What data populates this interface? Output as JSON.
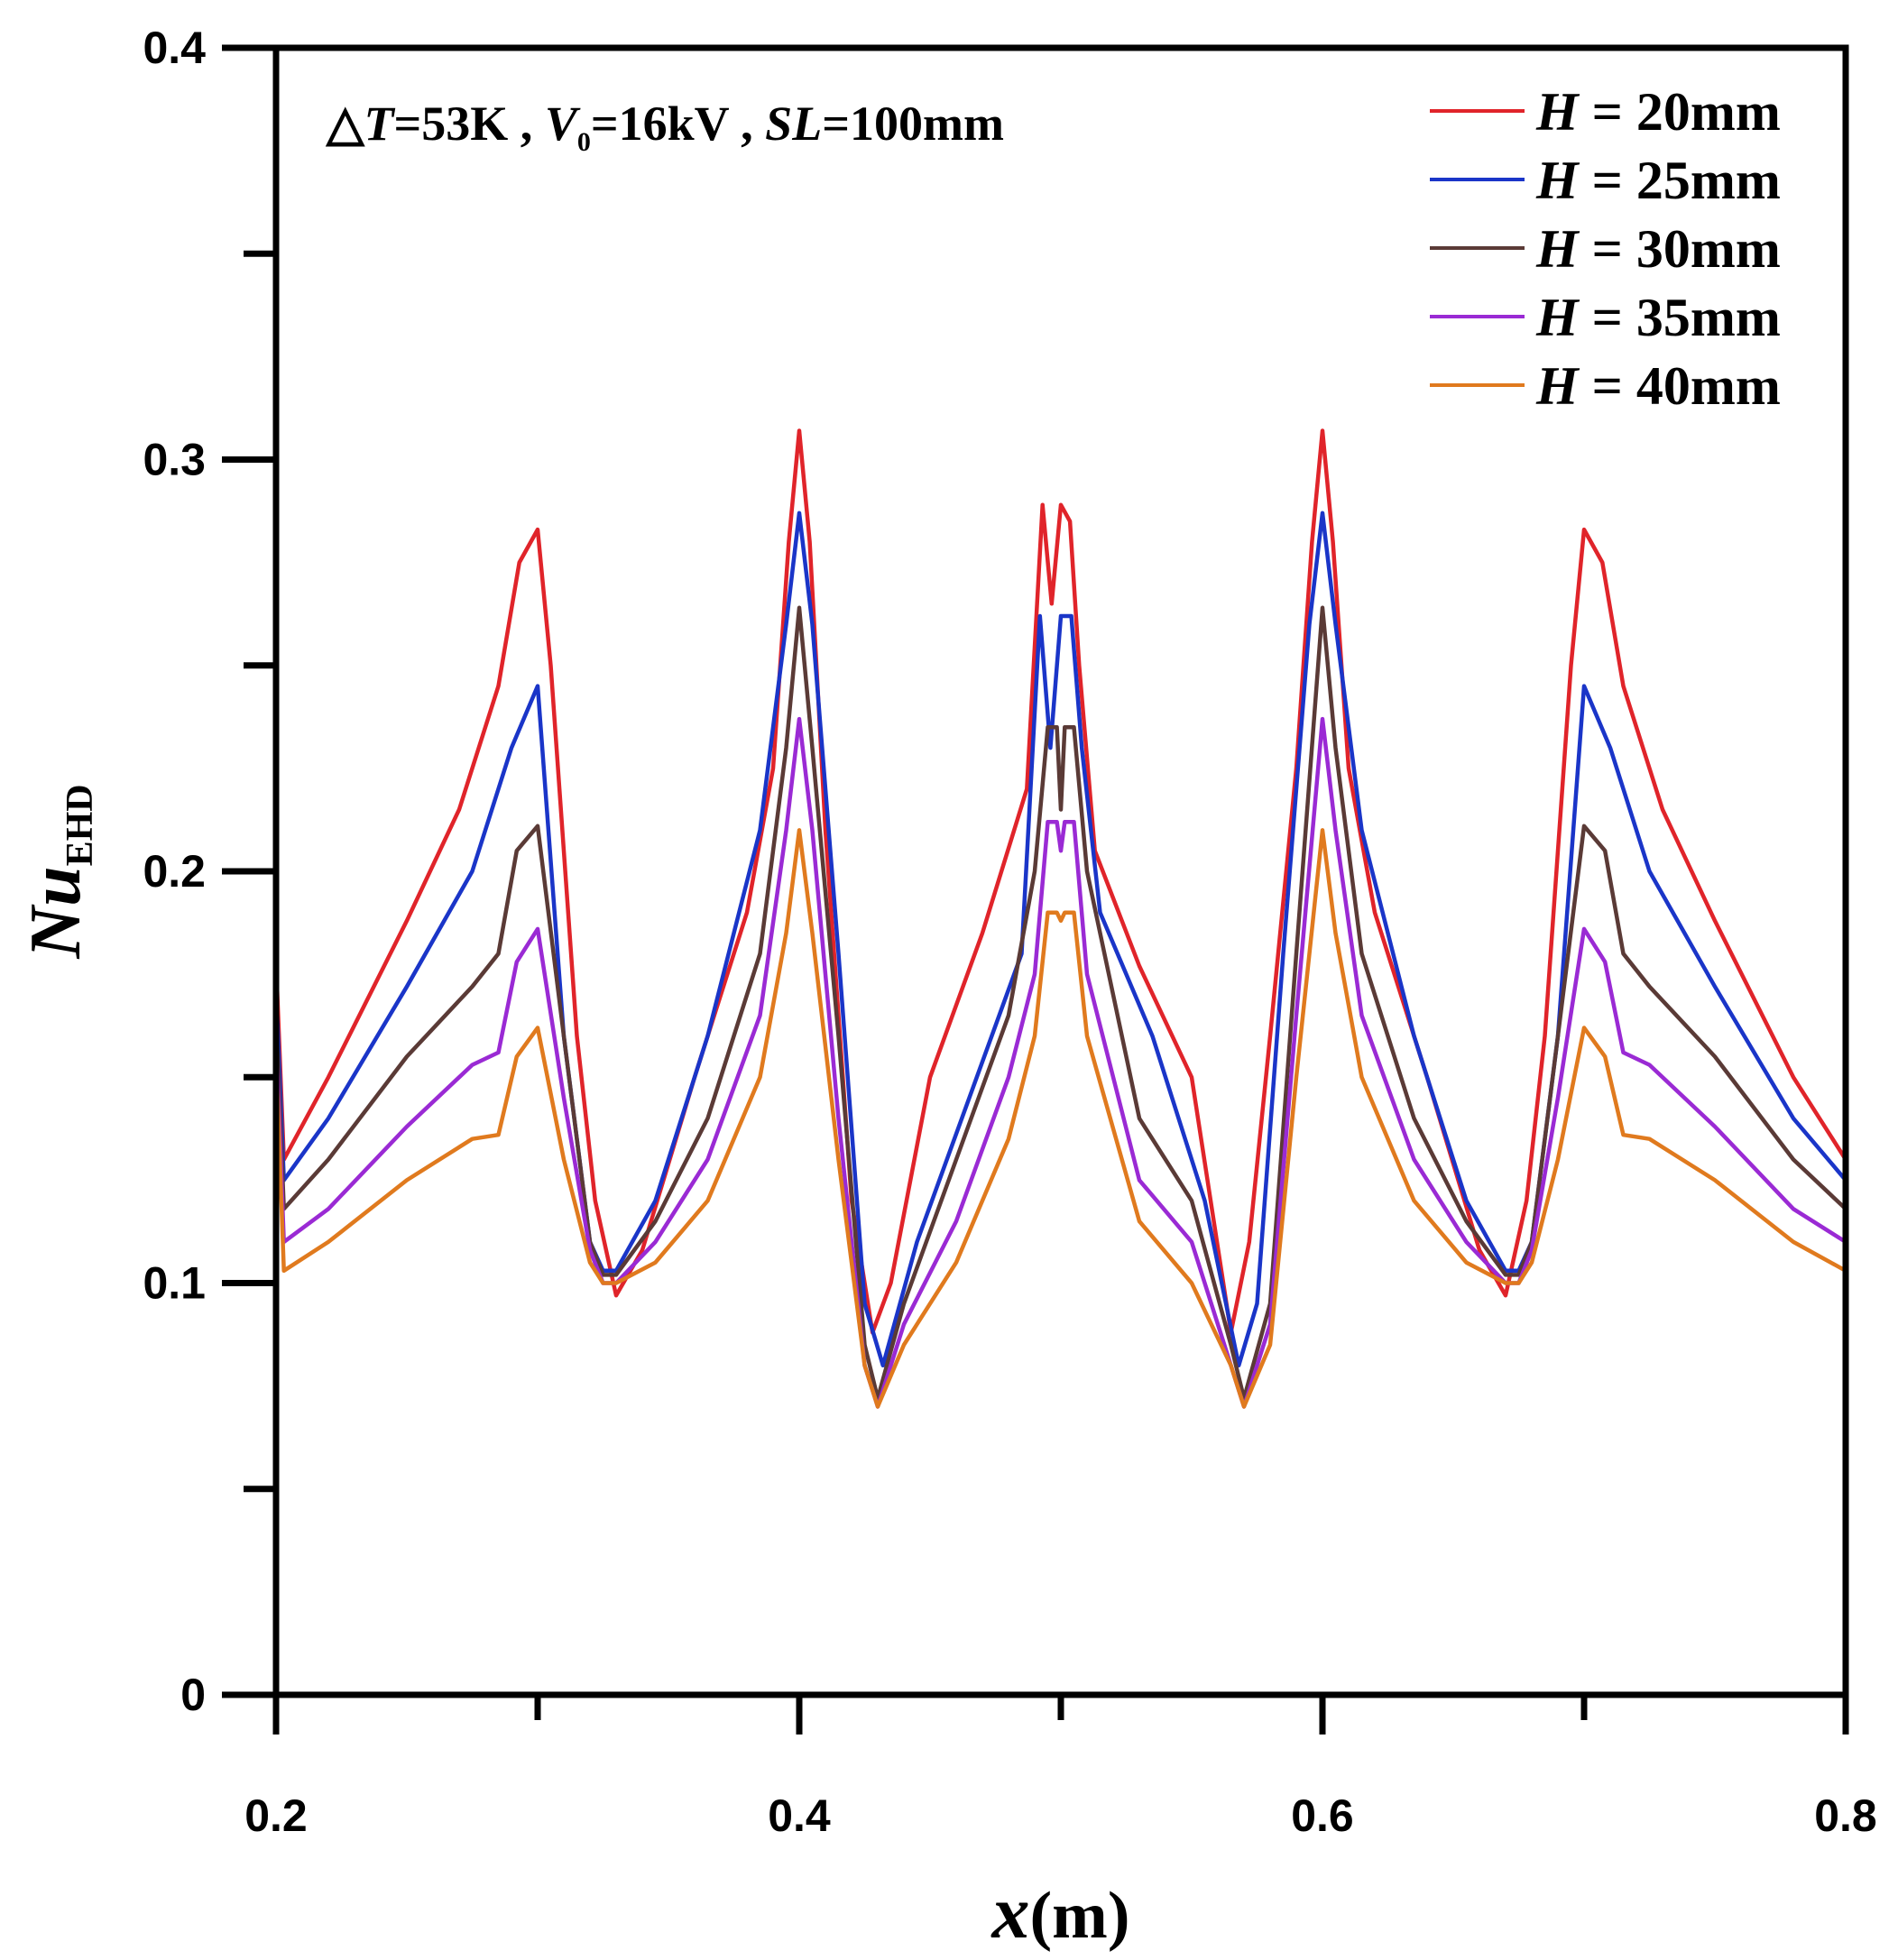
{
  "chart_data": {
    "type": "line",
    "title": "",
    "xlabel_main": "x",
    "xlabel_unit": "(m)",
    "ylabel_main": "Nu",
    "ylabel_sub": "EHD",
    "xlim": [
      0.2,
      0.8
    ],
    "ylim": [
      0,
      0.4
    ],
    "xticks": [
      0.2,
      0.4,
      0.6,
      0.8
    ],
    "xtick_labels": [
      "0.2",
      "0.4",
      "0.6",
      "0.8"
    ],
    "xminor": [
      0.3,
      0.5,
      0.7
    ],
    "yticks": [
      0,
      0.1,
      0.2,
      0.3,
      0.4
    ],
    "ytick_labels": [
      "0",
      "0.1",
      "0.2",
      "0.3",
      "0.4"
    ],
    "yminor": [
      0.05,
      0.15,
      0.25,
      0.35
    ],
    "grid": false,
    "legend_position": "top-right",
    "annotation": {
      "tri": "△",
      "t_var": "T",
      "t_val": "=53K , ",
      "v_var": "V",
      "v_sub": "0",
      "v_val": "=16kV , ",
      "sl_var": "SL",
      "sl_val": "=100mm"
    },
    "series": [
      {
        "name": "H = 20mm",
        "legend_var": "H",
        "legend_rest": " = 20mm",
        "color": "#e0242a",
        "x": [
          0.2,
          0.203,
          0.22,
          0.25,
          0.27,
          0.285,
          0.293,
          0.3,
          0.305,
          0.315,
          0.322,
          0.33,
          0.34,
          0.36,
          0.38,
          0.39,
          0.396,
          0.4,
          0.404,
          0.41,
          0.42,
          0.428,
          0.435,
          0.45,
          0.47,
          0.487,
          0.493,
          0.4965,
          0.5,
          0.5035,
          0.507,
          0.513,
          0.53,
          0.55,
          0.565,
          0.572,
          0.58,
          0.59,
          0.596,
          0.6,
          0.604,
          0.61,
          0.62,
          0.64,
          0.66,
          0.67,
          0.678,
          0.685,
          0.695,
          0.7,
          0.707,
          0.715,
          0.73,
          0.75,
          0.78,
          0.8
        ],
        "y": [
          0.178,
          0.13,
          0.15,
          0.188,
          0.215,
          0.245,
          0.275,
          0.283,
          0.25,
          0.16,
          0.12,
          0.097,
          0.108,
          0.15,
          0.19,
          0.225,
          0.28,
          0.307,
          0.28,
          0.21,
          0.12,
          0.088,
          0.1,
          0.15,
          0.185,
          0.22,
          0.289,
          0.265,
          0.289,
          0.285,
          0.25,
          0.205,
          0.177,
          0.15,
          0.088,
          0.11,
          0.16,
          0.225,
          0.28,
          0.307,
          0.28,
          0.225,
          0.19,
          0.15,
          0.108,
          0.097,
          0.12,
          0.16,
          0.25,
          0.283,
          0.275,
          0.245,
          0.215,
          0.188,
          0.15,
          0.13
        ]
      },
      {
        "name": "H = 25mm",
        "legend_var": "H",
        "legend_rest": " = 25mm",
        "color": "#1a35c8",
        "x": [
          0.2,
          0.203,
          0.22,
          0.25,
          0.275,
          0.29,
          0.3,
          0.31,
          0.32,
          0.325,
          0.33,
          0.345,
          0.365,
          0.385,
          0.395,
          0.4,
          0.405,
          0.415,
          0.425,
          0.432,
          0.445,
          0.465,
          0.485,
          0.492,
          0.496,
          0.5,
          0.504,
          0.508,
          0.515,
          0.535,
          0.555,
          0.568,
          0.575,
          0.585,
          0.595,
          0.6,
          0.605,
          0.615,
          0.635,
          0.655,
          0.67,
          0.675,
          0.68,
          0.69,
          0.7,
          0.71,
          0.725,
          0.75,
          0.78,
          0.8
        ],
        "y": [
          0.172,
          0.125,
          0.14,
          0.172,
          0.2,
          0.23,
          0.245,
          0.16,
          0.11,
          0.103,
          0.103,
          0.12,
          0.16,
          0.21,
          0.26,
          0.287,
          0.26,
          0.18,
          0.095,
          0.08,
          0.11,
          0.145,
          0.18,
          0.262,
          0.23,
          0.262,
          0.262,
          0.23,
          0.19,
          0.16,
          0.12,
          0.08,
          0.095,
          0.18,
          0.26,
          0.287,
          0.26,
          0.21,
          0.16,
          0.12,
          0.103,
          0.103,
          0.11,
          0.16,
          0.245,
          0.23,
          0.2,
          0.172,
          0.14,
          0.125
        ]
      },
      {
        "name": "H = 30mm",
        "legend_var": "H",
        "legend_rest": " = 30mm",
        "color": "#5a3a36",
        "x": [
          0.2,
          0.203,
          0.22,
          0.25,
          0.275,
          0.285,
          0.292,
          0.3,
          0.31,
          0.32,
          0.325,
          0.33,
          0.345,
          0.365,
          0.385,
          0.395,
          0.4,
          0.405,
          0.415,
          0.425,
          0.43,
          0.44,
          0.46,
          0.48,
          0.49,
          0.495,
          0.4985,
          0.5,
          0.5015,
          0.505,
          0.51,
          0.53,
          0.55,
          0.565,
          0.57,
          0.58,
          0.59,
          0.6,
          0.605,
          0.615,
          0.635,
          0.655,
          0.67,
          0.675,
          0.68,
          0.69,
          0.7,
          0.708,
          0.715,
          0.725,
          0.75,
          0.78,
          0.8
        ],
        "y": [
          0.165,
          0.118,
          0.13,
          0.155,
          0.172,
          0.18,
          0.205,
          0.211,
          0.16,
          0.11,
          0.102,
          0.102,
          0.115,
          0.14,
          0.18,
          0.23,
          0.264,
          0.23,
          0.16,
          0.085,
          0.072,
          0.095,
          0.13,
          0.165,
          0.2,
          0.235,
          0.235,
          0.215,
          0.235,
          0.235,
          0.2,
          0.14,
          0.12,
          0.085,
          0.072,
          0.095,
          0.18,
          0.264,
          0.23,
          0.18,
          0.14,
          0.115,
          0.102,
          0.102,
          0.11,
          0.16,
          0.211,
          0.205,
          0.18,
          0.172,
          0.155,
          0.13,
          0.118
        ]
      },
      {
        "name": "H = 35mm",
        "legend_var": "H",
        "legend_rest": " = 35mm",
        "color": "#9a2ad4",
        "x": [
          0.2,
          0.203,
          0.22,
          0.25,
          0.275,
          0.285,
          0.292,
          0.3,
          0.31,
          0.32,
          0.325,
          0.33,
          0.345,
          0.365,
          0.385,
          0.395,
          0.4,
          0.405,
          0.415,
          0.425,
          0.43,
          0.44,
          0.46,
          0.48,
          0.49,
          0.495,
          0.4985,
          0.5,
          0.5015,
          0.505,
          0.51,
          0.53,
          0.55,
          0.565,
          0.57,
          0.58,
          0.59,
          0.6,
          0.605,
          0.615,
          0.635,
          0.655,
          0.67,
          0.675,
          0.68,
          0.69,
          0.7,
          0.708,
          0.715,
          0.725,
          0.75,
          0.78,
          0.8
        ],
        "y": [
          0.16,
          0.11,
          0.118,
          0.138,
          0.153,
          0.156,
          0.178,
          0.186,
          0.145,
          0.108,
          0.1,
          0.1,
          0.11,
          0.13,
          0.165,
          0.21,
          0.237,
          0.21,
          0.14,
          0.08,
          0.07,
          0.09,
          0.115,
          0.15,
          0.175,
          0.212,
          0.212,
          0.205,
          0.212,
          0.212,
          0.175,
          0.125,
          0.11,
          0.08,
          0.07,
          0.09,
          0.165,
          0.237,
          0.21,
          0.165,
          0.13,
          0.11,
          0.1,
          0.1,
          0.108,
          0.145,
          0.186,
          0.178,
          0.156,
          0.153,
          0.138,
          0.118,
          0.11
        ]
      },
      {
        "name": "H = 40mm",
        "legend_var": "H",
        "legend_rest": " = 40mm",
        "color": "#e07a1e",
        "x": [
          0.2,
          0.203,
          0.22,
          0.25,
          0.275,
          0.285,
          0.292,
          0.3,
          0.31,
          0.32,
          0.325,
          0.33,
          0.345,
          0.365,
          0.385,
          0.395,
          0.4,
          0.405,
          0.415,
          0.425,
          0.43,
          0.44,
          0.46,
          0.48,
          0.49,
          0.495,
          0.4985,
          0.5,
          0.5015,
          0.505,
          0.51,
          0.53,
          0.55,
          0.565,
          0.57,
          0.58,
          0.59,
          0.6,
          0.605,
          0.615,
          0.635,
          0.655,
          0.67,
          0.675,
          0.68,
          0.69,
          0.7,
          0.708,
          0.715,
          0.725,
          0.75,
          0.78,
          0.8
        ],
        "y": [
          0.155,
          0.103,
          0.11,
          0.125,
          0.135,
          0.136,
          0.155,
          0.162,
          0.13,
          0.105,
          0.1,
          0.1,
          0.105,
          0.12,
          0.15,
          0.185,
          0.21,
          0.185,
          0.13,
          0.08,
          0.07,
          0.085,
          0.105,
          0.135,
          0.16,
          0.19,
          0.19,
          0.188,
          0.19,
          0.19,
          0.16,
          0.115,
          0.1,
          0.08,
          0.07,
          0.085,
          0.15,
          0.21,
          0.185,
          0.15,
          0.12,
          0.105,
          0.1,
          0.1,
          0.105,
          0.13,
          0.162,
          0.155,
          0.136,
          0.135,
          0.125,
          0.11,
          0.103
        ]
      }
    ]
  }
}
